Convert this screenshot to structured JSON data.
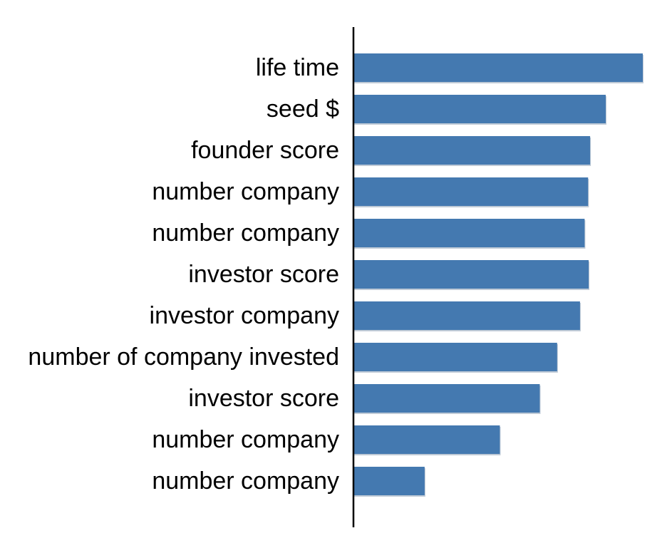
{
  "chart_data": {
    "type": "bar",
    "orientation": "horizontal",
    "categories": [
      "life time",
      "seed $",
      "founder score",
      "number company",
      "number company",
      "investor score",
      "investor company",
      "number of company invested",
      "investor score",
      "number company",
      "number company"
    ],
    "values": [
      100,
      87.2,
      81.8,
      81.1,
      79.9,
      81.3,
      78.3,
      70.4,
      64.4,
      50.6,
      24.6
    ],
    "title": "",
    "xlabel": "",
    "ylabel": "",
    "xlim": [
      0,
      100
    ],
    "grid": false,
    "legend": "none",
    "value_axis_visible": false
  },
  "colors": {
    "bar_fill": "#4479B0",
    "bar_shadow": "#8A9EB4",
    "axis": "#000000",
    "label_text": "#000000",
    "background": "#ffffff"
  }
}
